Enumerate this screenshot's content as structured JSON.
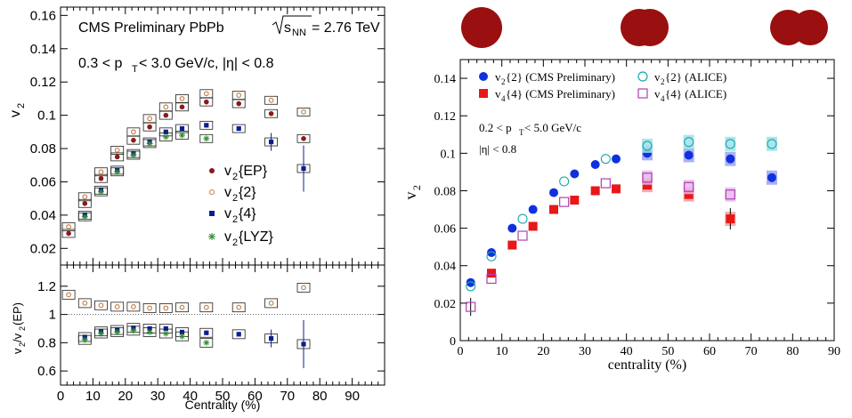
{
  "chart_data": [
    {
      "panel": "left-top",
      "type": "scatter",
      "header": "CMS Preliminary  PbPb",
      "energy_label": {
        "sqrt": "s",
        "sub": "NN",
        "rest": " = 2.76 TeV"
      },
      "cuts": {
        "a": "0.3 < p",
        "sub": "T",
        "b": " < 3.0 GeV/c,  |η| < 0.8"
      },
      "ylabel": {
        "main": "v",
        "sub": "2"
      },
      "xlim": [
        0,
        100
      ],
      "ylim": [
        0.01,
        0.165
      ],
      "yticks": [
        "0.02",
        "0.04",
        "0.06",
        "0.08",
        "0.1",
        "0.12",
        "0.14",
        "0.16"
      ],
      "legend_position": "middle-right",
      "series": [
        {
          "key": "ep",
          "name": "v{EP}",
          "label_main": "v",
          "label_sub": "2",
          "label_rest": "{EP}",
          "marker": "circle",
          "color": "#8b1a1a",
          "x": [
            2.5,
            7.5,
            12.5,
            17.5,
            22.5,
            27.5,
            32.5,
            37.5,
            45,
            55,
            65,
            75
          ],
          "y": [
            0.029,
            0.047,
            0.062,
            0.075,
            0.085,
            0.093,
            0.1,
            0.105,
            0.108,
            0.107,
            0.101,
            0.086
          ]
        },
        {
          "key": "two",
          "name": "v{2}",
          "label_main": "v",
          "label_sub": "2",
          "label_rest": "{2}",
          "marker": "open-circle",
          "color": "#c47a3a",
          "x": [
            2.5,
            7.5,
            12.5,
            17.5,
            22.5,
            27.5,
            32.5,
            37.5,
            45,
            55,
            65,
            75
          ],
          "y": [
            0.033,
            0.051,
            0.066,
            0.079,
            0.09,
            0.098,
            0.105,
            0.11,
            0.113,
            0.112,
            0.109,
            0.102
          ]
        },
        {
          "key": "four",
          "name": "v{4}",
          "label_main": "v",
          "label_sub": "2",
          "label_rest": "{4}",
          "marker": "square",
          "color": "#0a1f8f",
          "x": [
            7.5,
            12.5,
            17.5,
            22.5,
            27.5,
            32.5,
            37.5,
            45,
            55,
            65,
            75
          ],
          "y": [
            0.04,
            0.055,
            0.067,
            0.077,
            0.084,
            0.09,
            0.092,
            0.094,
            0.092,
            0.084,
            0.068
          ]
        },
        {
          "key": "lyz",
          "name": "v{LYZ}",
          "label_main": "v",
          "label_sub": "2",
          "label_rest": "{LYZ}",
          "marker": "star",
          "color": "#2e8b2e",
          "x": [
            7.5,
            12.5,
            17.5,
            22.5,
            27.5,
            32.5,
            37.5,
            45
          ],
          "y": [
            0.039,
            0.054,
            0.066,
            0.076,
            0.083,
            0.087,
            0.088,
            0.086
          ]
        }
      ]
    },
    {
      "panel": "left-bottom",
      "type": "scatter",
      "ylabel": {
        "a": "v",
        "asub": "2",
        "b": "/v",
        "bsub": "2",
        "c": "(EP)"
      },
      "xlabel": "Centrality (%)",
      "xlim": [
        0,
        100
      ],
      "ylim": [
        0.5,
        1.35
      ],
      "yticks": [
        "0.6",
        "0.8",
        "1",
        "1.2"
      ],
      "xticks": [
        "0",
        "10",
        "20",
        "30",
        "40",
        "50",
        "60",
        "70",
        "80",
        "90"
      ],
      "reference_line": 1,
      "series": [
        {
          "key": "ratio2",
          "marker": "open-circle",
          "color": "#c47a3a",
          "x": [
            2.5,
            7.5,
            12.5,
            17.5,
            22.5,
            27.5,
            32.5,
            37.5,
            45,
            55,
            65,
            75
          ],
          "y": [
            1.14,
            1.08,
            1.065,
            1.055,
            1.055,
            1.045,
            1.045,
            1.05,
            1.05,
            1.05,
            1.08,
            1.19
          ]
        },
        {
          "key": "ratio4",
          "marker": "square",
          "color": "#0a1f8f",
          "x": [
            7.5,
            12.5,
            17.5,
            22.5,
            27.5,
            32.5,
            37.5,
            45,
            55,
            65,
            75
          ],
          "y": [
            0.84,
            0.88,
            0.89,
            0.905,
            0.9,
            0.9,
            0.875,
            0.87,
            0.86,
            0.83,
            0.79
          ]
        },
        {
          "key": "ratiolyz",
          "marker": "star",
          "color": "#2e8b2e",
          "x": [
            7.5,
            12.5,
            17.5,
            22.5,
            27.5,
            32.5,
            37.5,
            45
          ],
          "y": [
            0.82,
            0.865,
            0.875,
            0.885,
            0.875,
            0.865,
            0.845,
            0.8
          ]
        }
      ]
    },
    {
      "panel": "right",
      "type": "scatter",
      "xlabel": "centrality (%)",
      "ylabel": {
        "main": "v",
        "sub": "2"
      },
      "cuts": {
        "a": "0.2 < p",
        "sub": "T",
        "b": " < 5.0 GeV/c"
      },
      "eta": "|η| < 0.8",
      "xlim": [
        0,
        90
      ],
      "ylim": [
        0,
        0.15
      ],
      "xticks": [
        "0",
        "10",
        "20",
        "30",
        "40",
        "50",
        "60",
        "70",
        "80",
        "90"
      ],
      "yticks": [
        "0",
        "0.02",
        "0.04",
        "0.06",
        "0.08",
        "0.1",
        "0.12",
        "0.14"
      ],
      "legend_position": "top",
      "series": [
        {
          "key": "cms2",
          "label_main": "v",
          "label_sub": "2",
          "label_rest": "{2} (CMS Preliminary)",
          "marker": "circle",
          "color": "#1030e0",
          "x": [
            2.5,
            7.5,
            12.5,
            17.5,
            22.5,
            27.5,
            32.5,
            37.5,
            45,
            55,
            65,
            75
          ],
          "y": [
            0.031,
            0.047,
            0.06,
            0.07,
            0.079,
            0.089,
            0.094,
            0.097,
            0.1,
            0.099,
            0.097,
            0.087
          ]
        },
        {
          "key": "alice2",
          "label_main": "v",
          "label_sub": "2",
          "label_rest": "{2} (ALICE)",
          "marker": "open-circle",
          "color": "#1aa8a8",
          "x": [
            2.5,
            7.5,
            15,
            25,
            35,
            45,
            55,
            65,
            75
          ],
          "y": [
            0.029,
            0.045,
            0.065,
            0.085,
            0.097,
            0.104,
            0.106,
            0.105,
            0.105
          ]
        },
        {
          "key": "cms4",
          "label_main": "v",
          "label_sub": "4",
          "label_rest": "{4} (CMS Preliminary)",
          "marker": "square",
          "color": "#e81818",
          "x": [
            7.5,
            12.5,
            17.5,
            22.5,
            27.5,
            32.5,
            37.5,
            45,
            55,
            65
          ],
          "y": [
            0.036,
            0.051,
            0.061,
            0.07,
            0.075,
            0.08,
            0.081,
            0.083,
            0.078,
            0.065
          ]
        },
        {
          "key": "alice4",
          "label_main": "v",
          "label_sub": "4",
          "label_rest": "{4} (ALICE)",
          "marker": "open-square",
          "color": "#b040b0",
          "x": [
            2.5,
            7.5,
            15,
            25,
            35,
            45,
            55,
            65
          ],
          "y": [
            0.018,
            0.033,
            0.056,
            0.074,
            0.084,
            0.087,
            0.082,
            0.078
          ]
        }
      ]
    }
  ],
  "collision_icons": [
    "central-collision-icon",
    "mid-central-collision-icon",
    "peripheral-collision-icon"
  ],
  "colors": {
    "nucleus": "#9a0f0f"
  }
}
